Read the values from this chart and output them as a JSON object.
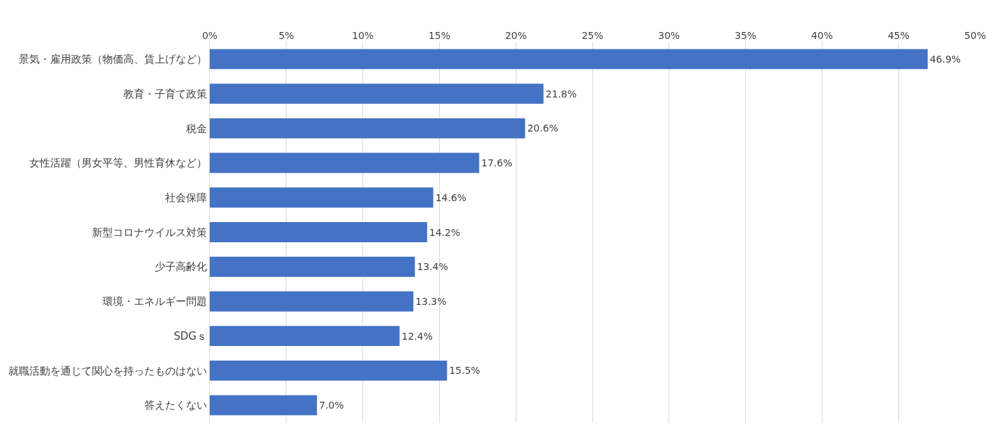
{
  "chart_data": {
    "type": "bar",
    "orientation": "horizontal",
    "categories": [
      "景気・雇用政策（物価高、賃上げなど）",
      "教育・子育て政策",
      "税金",
      "女性活躍（男女平等、男性育休など）",
      "社会保障",
      "新型コロナウイルス対策",
      "少子高齢化",
      "環境・エネルギー問題",
      "SDGｓ",
      "就職活動を通じて関心を持ったものはない",
      "答えたくない"
    ],
    "values": [
      46.9,
      21.8,
      20.6,
      17.6,
      14.6,
      14.2,
      13.4,
      13.3,
      12.4,
      15.5,
      7.0
    ],
    "value_labels": [
      "46.9%",
      "21.8%",
      "20.6%",
      "17.6%",
      "14.6%",
      "14.2%",
      "13.4%",
      "13.3%",
      "12.4%",
      "15.5%",
      "7.0%"
    ],
    "color": "#4472c4",
    "xlim": [
      0,
      50
    ],
    "xticks": [
      {
        "value": 0,
        "label": "0%"
      },
      {
        "value": 5,
        "label": "5%"
      },
      {
        "value": 10,
        "label": "10%"
      },
      {
        "value": 15,
        "label": "15%"
      },
      {
        "value": 20,
        "label": "20%"
      },
      {
        "value": 25,
        "label": "25%"
      },
      {
        "value": 30,
        "label": "30%"
      },
      {
        "value": 35,
        "label": "35%"
      },
      {
        "value": 40,
        "label": "40%"
      },
      {
        "value": 45,
        "label": "45%"
      },
      {
        "value": 50,
        "label": "50%"
      }
    ],
    "grid": "x"
  }
}
